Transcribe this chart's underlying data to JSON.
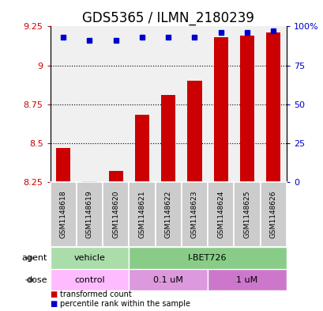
{
  "title": "GDS5365 / ILMN_2180239",
  "samples": [
    "GSM1148618",
    "GSM1148619",
    "GSM1148620",
    "GSM1148621",
    "GSM1148622",
    "GSM1148623",
    "GSM1148624",
    "GSM1148625",
    "GSM1148626"
  ],
  "bar_values": [
    8.47,
    8.253,
    8.32,
    8.68,
    8.81,
    8.9,
    9.18,
    9.19,
    9.21
  ],
  "dot_values": [
    93,
    91,
    91,
    93,
    93,
    93,
    96,
    96,
    97
  ],
  "ylim_left": [
    8.25,
    9.25
  ],
  "ylim_right": [
    0,
    100
  ],
  "yticks_left": [
    8.25,
    8.5,
    8.75,
    9.0,
    9.25
  ],
  "ytick_labels_left": [
    "8.25",
    "8.5",
    "8.75",
    "9",
    "9.25"
  ],
  "yticks_right": [
    0,
    25,
    50,
    75,
    100
  ],
  "ytick_labels_right": [
    "0",
    "25",
    "50",
    "75",
    "100%"
  ],
  "bar_color": "#cc0000",
  "dot_color": "#0000cc",
  "agent_groups": [
    {
      "label": "vehicle",
      "start": 0,
      "end": 3,
      "color": "#aaddaa"
    },
    {
      "label": "I-BET726",
      "start": 3,
      "end": 9,
      "color": "#88cc88"
    }
  ],
  "dose_groups": [
    {
      "label": "control",
      "start": 0,
      "end": 3,
      "color": "#ffaaff"
    },
    {
      "label": "0.1 uM",
      "start": 3,
      "end": 6,
      "color": "#dd88dd"
    },
    {
      "label": "1 uM",
      "start": 6,
      "end": 9,
      "color": "#cc66cc"
    }
  ],
  "background_color": "#ffffff",
  "plot_bg_color": "#f0f0f0",
  "title_fontsize": 12,
  "tick_fontsize": 8,
  "label_fontsize": 8,
  "sample_fontsize": 6.5
}
